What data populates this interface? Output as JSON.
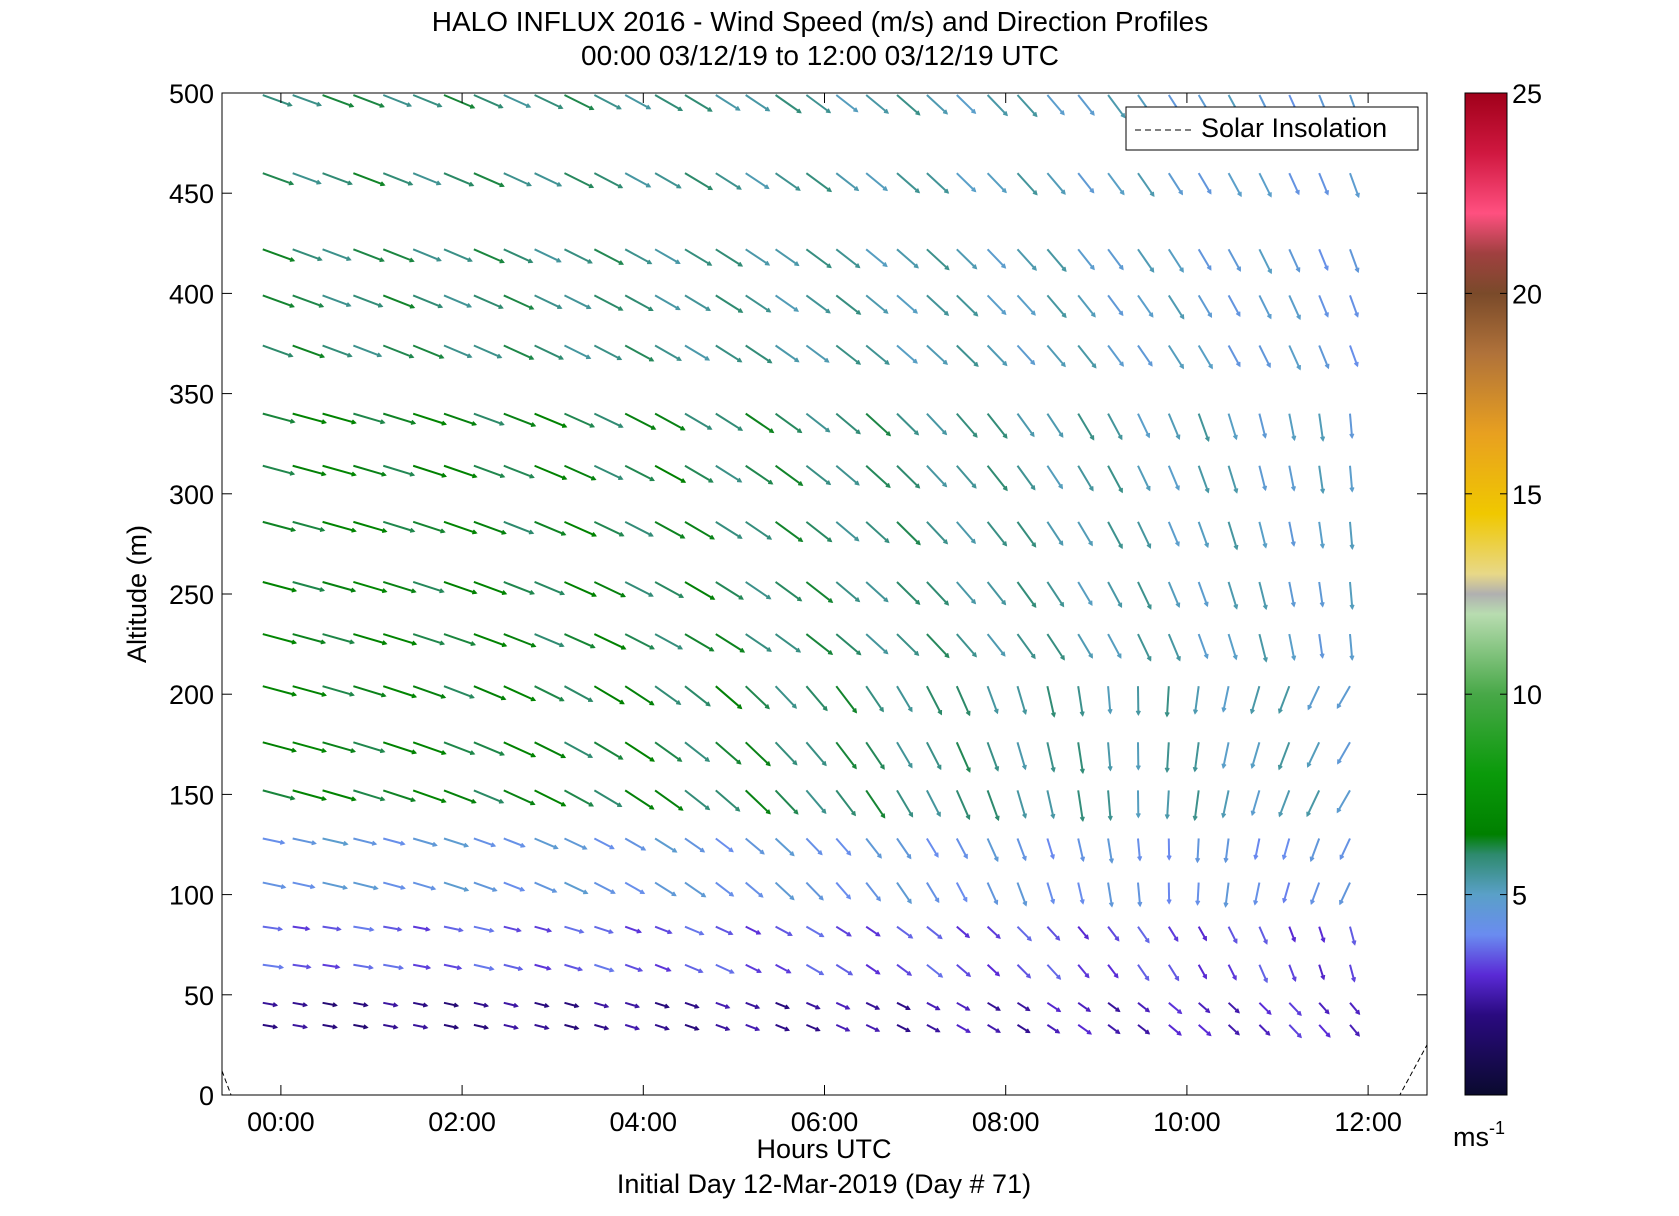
{
  "chart_data": {
    "type": "quiver",
    "title_line1": "HALO INFLUX 2016 - Wind Speed (m/s) and Direction Profiles",
    "title_line2": "00:00 03/12/19 to 12:00 03/12/19  UTC",
    "xlabel": "Hours UTC",
    "xlabel2": "Initial Day 12-Mar-2019 (Day # 71)",
    "ylabel": "Altitude (m)",
    "xlim": [
      -0.65,
      12.65
    ],
    "ylim": [
      0,
      500
    ],
    "x_ticks": [
      0,
      2,
      4,
      6,
      8,
      10,
      12
    ],
    "x_tick_labels": [
      "00:00",
      "02:00",
      "04:00",
      "06:00",
      "08:00",
      "10:00",
      "12:00"
    ],
    "y_ticks": [
      0,
      50,
      100,
      150,
      200,
      250,
      300,
      350,
      400,
      450,
      500
    ],
    "y_tick_labels": [
      "0",
      "50",
      "100",
      "150",
      "200",
      "250",
      "300",
      "350",
      "400",
      "450",
      "500"
    ],
    "legend": {
      "label": "Solar Insolation",
      "style": "dashed",
      "color": "#000000",
      "position": "top-right"
    },
    "colorbar": {
      "min": 0,
      "max": 25,
      "ticks": [
        5,
        10,
        15,
        20,
        25
      ],
      "tick_labels": [
        "5",
        "10",
        "15",
        "20",
        "25"
      ],
      "unit_base": "ms",
      "unit_exp": "-1",
      "stops": [
        [
          0,
          "#0a0a2e"
        ],
        [
          2,
          "#2a0a80"
        ],
        [
          3,
          "#5a2ad6"
        ],
        [
          4,
          "#6a8cf0"
        ],
        [
          5,
          "#5aa0c8"
        ],
        [
          6,
          "#2e8a6e"
        ],
        [
          6.5,
          "#008000"
        ],
        [
          8,
          "#0a9a0a"
        ],
        [
          10,
          "#48a848"
        ],
        [
          12,
          "#b8dcb0"
        ],
        [
          12.5,
          "#b0b0b0"
        ],
        [
          13,
          "#e8d888"
        ],
        [
          14.5,
          "#f0c800"
        ],
        [
          16.5,
          "#e8a020"
        ],
        [
          18.5,
          "#b0723a"
        ],
        [
          20,
          "#7a4a2a"
        ],
        [
          21,
          "#a04040"
        ],
        [
          22,
          "#ff5080"
        ],
        [
          23.5,
          "#d01840"
        ],
        [
          25,
          "#a0001a"
        ]
      ]
    },
    "times": [
      -0.2,
      0.13,
      0.46,
      0.8,
      1.13,
      1.46,
      1.8,
      2.13,
      2.46,
      2.8,
      3.13,
      3.46,
      3.8,
      4.13,
      4.46,
      4.8,
      5.13,
      5.46,
      5.8,
      6.13,
      6.46,
      6.8,
      7.13,
      7.46,
      7.8,
      8.13,
      8.46,
      8.8,
      9.13,
      9.46,
      9.8,
      10.13,
      10.46,
      10.8,
      11.13,
      11.46,
      11.8
    ],
    "altitudes": [
      35,
      46,
      65,
      84,
      106,
      128,
      152,
      176,
      204,
      230,
      256,
      286,
      314,
      340,
      374,
      399,
      422,
      460,
      499
    ],
    "regimes": [
      {
        "z_max": 50,
        "dir_start": 280,
        "dir_end": 320,
        "spd_start": 2.0,
        "spd_end": 3.0
      },
      {
        "z_max": 90,
        "dir_start": 278,
        "dir_end": 345,
        "spd_start": 3.5,
        "spd_end": 3.2
      },
      {
        "z_max": 130,
        "dir_start": 282,
        "dir_end": 25,
        "spd_start": 4.5,
        "spd_end": 4.2
      },
      {
        "z_max": 210,
        "dir_start": 285,
        "dir_end": 30,
        "spd_start": 6.5,
        "spd_end": 5.0
      },
      {
        "z_max": 350,
        "dir_start": 285,
        "dir_end": 355,
        "spd_start": 6.5,
        "spd_end": 4.8
      },
      {
        "z_max": 500,
        "dir_start": 290,
        "dir_end": 340,
        "spd_start": 6.0,
        "spd_end": 4.5
      }
    ],
    "solar_insolation": {
      "x": [
        -0.65,
        -0.55,
        12.35,
        12.65
      ],
      "y": [
        12,
        0,
        0,
        25
      ]
    }
  }
}
